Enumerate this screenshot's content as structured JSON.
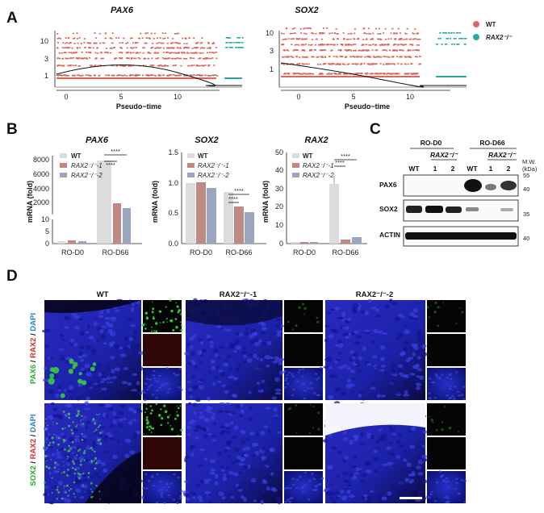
{
  "panels": {
    "a": "A",
    "b": "B",
    "c": "C",
    "d": "D"
  },
  "colors": {
    "wt": "#d9695b",
    "ko": "#2aa8a8",
    "wt_bar": "#dcdcdc",
    "ko1_bar": "#bf8a84",
    "ko2_bar": "#9aa6bd",
    "green": "#3ad43a",
    "red": "#d03030",
    "blue": "#1a1ad8"
  },
  "scatter": {
    "xlabel": "Pseudo−time",
    "legend": [
      {
        "label": "WT",
        "color": "#d9695b"
      },
      {
        "label": "RAX2⁻/⁻",
        "color": "#2aa8a8"
      }
    ],
    "plots": [
      {
        "title": "PAX6",
        "xticks": [
          "0",
          "5",
          "10"
        ],
        "yticks": [
          "10",
          "3",
          "1"
        ]
      },
      {
        "title": "SOX2",
        "xticks": [
          "0",
          "5",
          "10"
        ],
        "yticks": [
          "10",
          "3",
          "1"
        ]
      }
    ]
  },
  "bars": {
    "ylabel": "mRNA (fold)",
    "categories": [
      "RO-D0",
      "RO-D66"
    ],
    "legend": [
      "WT",
      "RAX2⁻/⁻-1",
      "RAX2⁻/⁻-2"
    ],
    "sig": "****",
    "charts": [
      {
        "title": "PAX6",
        "type": "bar",
        "yticks_top": [
          "8000",
          "6000",
          "4000",
          "2000"
        ],
        "yticks_bottom": [
          "10",
          "5",
          "0"
        ],
        "series": [
          {
            "name": "WT",
            "values": [
              1,
              7500
            ]
          },
          {
            "name": "RAX2⁻/⁻-1",
            "values": [
              1.2,
              1700
            ]
          },
          {
            "name": "RAX2⁻/⁻-2",
            "values": [
              1,
              1100
            ]
          }
        ]
      },
      {
        "title": "SOX2",
        "type": "bar",
        "yticks": [
          "1.5",
          "1.0",
          "0.5",
          "0.0"
        ],
        "ylim": [
          0,
          1.5
        ],
        "series": [
          {
            "name": "WT",
            "values": [
              1.0,
              0.85
            ]
          },
          {
            "name": "RAX2⁻/⁻-1",
            "values": [
              1.02,
              0.61
            ]
          },
          {
            "name": "RAX2⁻/⁻-2",
            "values": [
              0.92,
              0.52
            ]
          }
        ]
      },
      {
        "title": "RAX2",
        "type": "bar",
        "yticks": [
          "50",
          "40",
          "30",
          "20",
          "10",
          "0"
        ],
        "ylim": [
          0,
          50
        ],
        "series": [
          {
            "name": "WT",
            "values": [
              1,
              33
            ]
          },
          {
            "name": "RAX2⁻/⁻-1",
            "values": [
              1,
              2
            ]
          },
          {
            "name": "RAX2⁻/⁻-2",
            "values": [
              1,
              3
            ]
          }
        ]
      }
    ]
  },
  "blot": {
    "groups": [
      "RO-D0",
      "RO-D66"
    ],
    "ko": "RAX2⁻/⁻",
    "lanes": [
      "WT",
      "1",
      "2",
      "WT",
      "1",
      "2"
    ],
    "mw_title": "M.W.",
    "mw_unit": "(kDa)",
    "rows": [
      {
        "label": "PAX6",
        "mw": [
          "55",
          "40"
        ]
      },
      {
        "label": "SOX2",
        "mw": [
          "35"
        ]
      },
      {
        "label": "ACTIN",
        "mw": [
          "40"
        ]
      }
    ]
  },
  "micro": {
    "columns": [
      "WT",
      "RAX2⁻/⁻-1",
      "RAX2⁻/⁻-2"
    ],
    "rows": [
      {
        "green": "PAX6",
        "sep1": " / ",
        "red": "RAX2",
        "sep2": " / ",
        "blue": "DAPI"
      },
      {
        "green": "SOX2",
        "sep1": " / ",
        "red": "RAX2",
        "sep2": " / ",
        "blue": "DAPI"
      }
    ]
  }
}
